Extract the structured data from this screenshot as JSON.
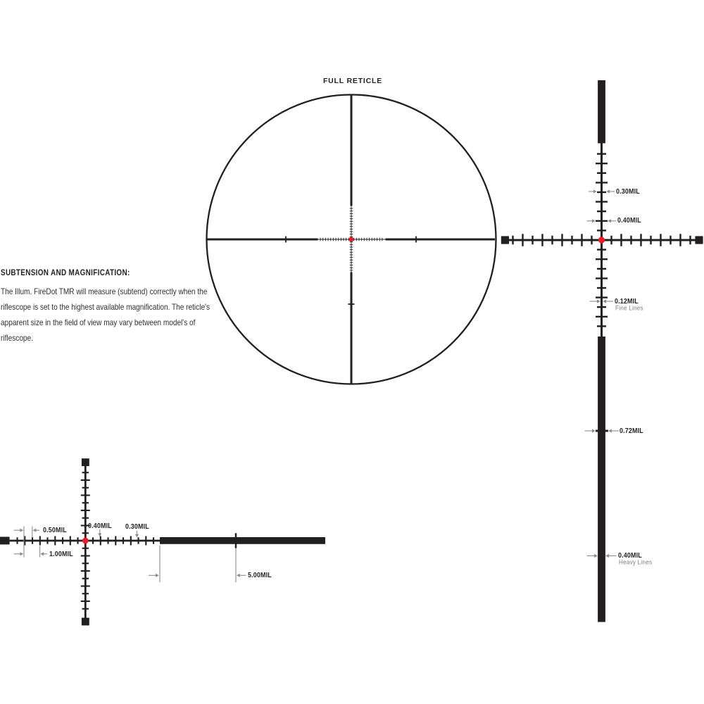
{
  "colors": {
    "ink": "#231f20",
    "red": "#ec1b24",
    "measure": "#8c8c8c",
    "subtext": "#7d7d7d"
  },
  "full_reticle": {
    "title": "FULL RETICLE"
  },
  "subtension": {
    "heading": "SUBTENSION AND MAGNIFICATION:",
    "body_lines": [
      "The Illum. FireDot TMR will measure (subtend) correctly when the",
      "riflescope is set to the highest available magnification. The reticle's",
      "apparent size in the field of view may vary between model's of",
      "riflescope."
    ]
  },
  "right_detail": {
    "measure_030": "0.30MIL",
    "measure_040_upper": "0.40MIL",
    "measure_012": "0.12MIL",
    "measure_012_sub": "Fine Lines",
    "measure_072": "0.72MIL",
    "measure_040_lower": "0.40MIL",
    "measure_040_lower_sub": "Heavy Lines"
  },
  "bottom_detail": {
    "measure_050": "0.50MIL",
    "measure_100": "1.00MIL",
    "measure_040": "0.40MIL",
    "measure_030": "0.30MIL",
    "measure_500": "5.00MIL"
  }
}
